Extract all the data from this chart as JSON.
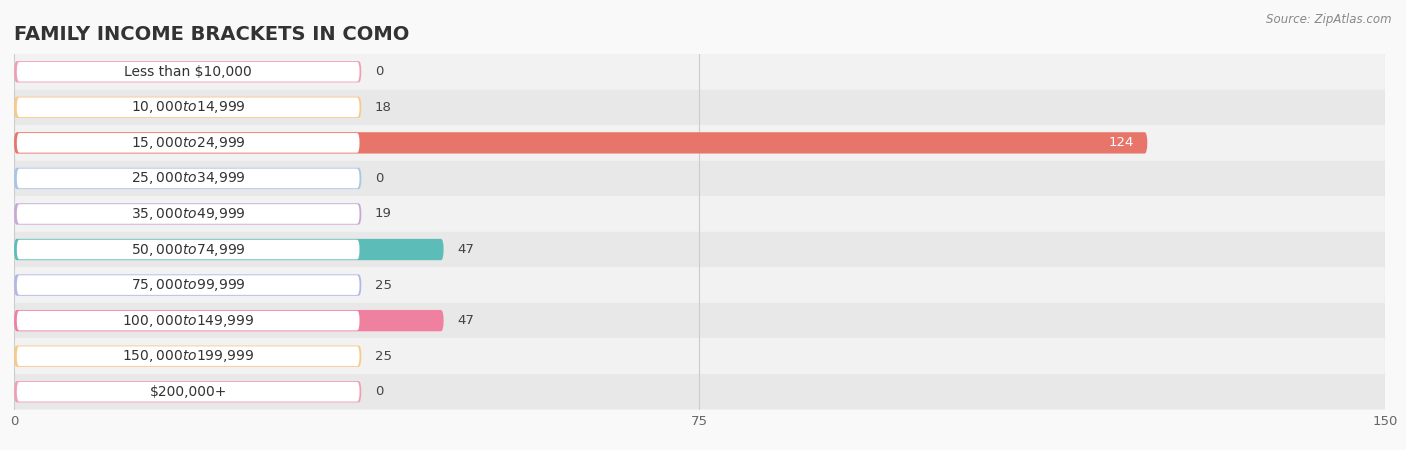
{
  "title": "FAMILY INCOME BRACKETS IN COMO",
  "source": "Source: ZipAtlas.com",
  "categories": [
    "Less than $10,000",
    "$10,000 to $14,999",
    "$15,000 to $24,999",
    "$25,000 to $34,999",
    "$35,000 to $49,999",
    "$50,000 to $74,999",
    "$75,000 to $99,999",
    "$100,000 to $149,999",
    "$150,000 to $199,999",
    "$200,000+"
  ],
  "values": [
    0,
    18,
    124,
    0,
    19,
    47,
    25,
    47,
    25,
    0
  ],
  "bar_colors": [
    "#f0a0b4",
    "#f9c98a",
    "#e8756a",
    "#a8c4e8",
    "#c8a8d8",
    "#5bbcb8",
    "#b0b8e8",
    "#f080a0",
    "#f9c98a",
    "#f0a0b4"
  ],
  "label_bg_colors": [
    "#f0a0b4",
    "#f9c98a",
    "#e8756a",
    "#a8c4e8",
    "#c8a8d8",
    "#5bbcb8",
    "#b0b8e8",
    "#f080a0",
    "#f9c98a",
    "#f0a0b4"
  ],
  "bg_row_colors": [
    "#f2f2f2",
    "#e8e8e8"
  ],
  "xlim": [
    0,
    150
  ],
  "xticks": [
    0,
    75,
    150
  ],
  "background_color": "#f9f9f9",
  "title_fontsize": 14,
  "label_fontsize": 10,
  "value_fontsize": 9.5,
  "bar_height": 0.6,
  "label_bar_width": 38,
  "min_bar_width": 38
}
